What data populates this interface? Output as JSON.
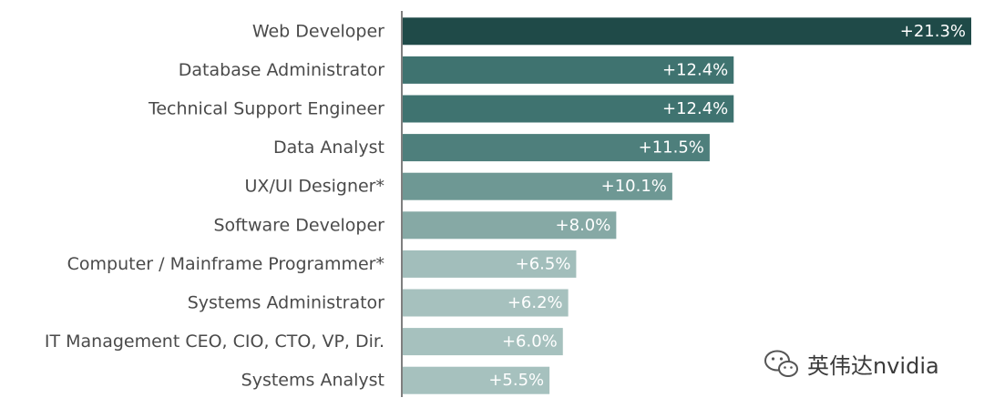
{
  "chart_data": {
    "type": "bar",
    "orientation": "horizontal",
    "categories": [
      "Web Developer",
      "Database Administrator",
      "Technical Support Engineer",
      "Data Analyst",
      "UX/UI Designer*",
      "Software Developer",
      "Computer / Mainframe Programmer*",
      "Systems Administrator",
      "IT Management CEO, CIO, CTO, VP, Dir.",
      "Systems Analyst"
    ],
    "values": [
      21.3,
      12.4,
      12.4,
      11.5,
      10.1,
      8.0,
      6.5,
      6.2,
      6.0,
      5.5
    ],
    "value_labels": [
      "+21.3%",
      "+12.4%",
      "+12.4%",
      "+11.5%",
      "+10.1%",
      "+8.0%",
      "+6.5%",
      "+6.2%",
      "+6.0%",
      "+5.5%"
    ],
    "colors": [
      "#1f4a48",
      "#3f7370",
      "#3f7370",
      "#4e7f7c",
      "#6e9894",
      "#86a9a5",
      "#a2bebb",
      "#a6c1be",
      "#a6c1be",
      "#a6c1be"
    ],
    "xlim": [
      0,
      21.3
    ],
    "grid": false
  },
  "watermark": {
    "icon": "wechat-icon",
    "text": "英伟达nvidia"
  }
}
